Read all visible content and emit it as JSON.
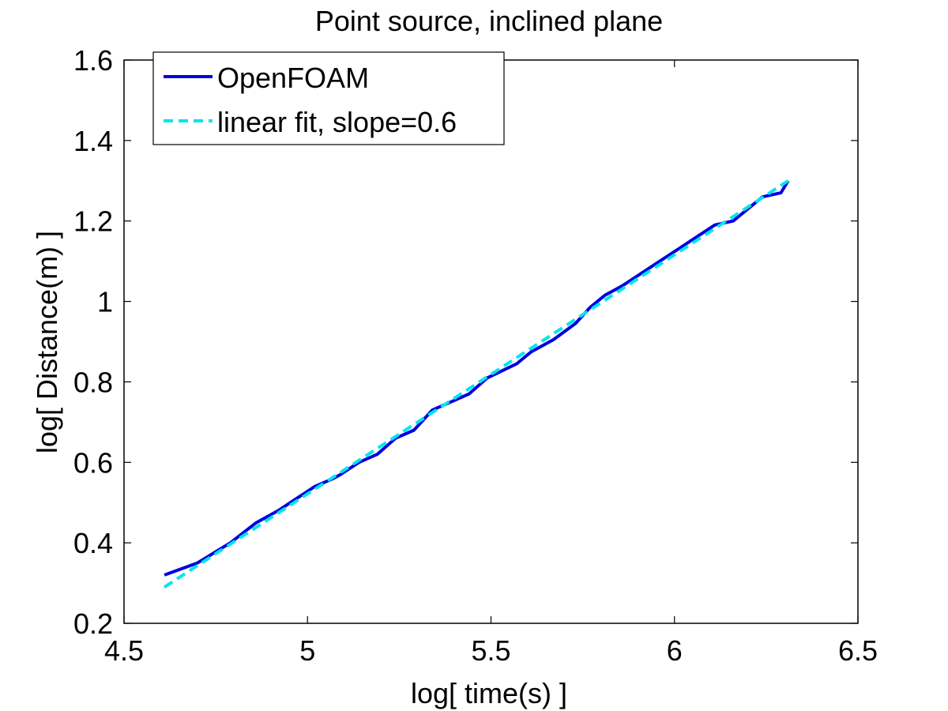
{
  "chart_data": {
    "type": "line",
    "title": "Point source, inclined plane",
    "xlabel": "log[ time(s) ]",
    "ylabel": "log[ Distance(m) ]",
    "xlim": [
      4.5,
      6.5
    ],
    "ylim": [
      0.2,
      1.6
    ],
    "xticks": [
      4.5,
      5,
      5.5,
      6,
      6.5
    ],
    "xtick_labels": [
      "4.5",
      "5",
      "5.5",
      "6",
      "6.5"
    ],
    "yticks": [
      0.2,
      0.4,
      0.6,
      0.8,
      1.0,
      1.2,
      1.4,
      1.6
    ],
    "ytick_labels": [
      "0.2",
      "0.4",
      "0.6",
      "0.8",
      "1",
      "1.2",
      "1.4",
      "1.6"
    ],
    "grid": false,
    "legend_position": "top-left",
    "series": [
      {
        "name": "OpenFOAM",
        "color": "#0000e0",
        "style": "solid",
        "x": [
          4.61,
          4.7,
          4.79,
          4.86,
          4.92,
          4.97,
          5.02,
          5.07,
          5.09,
          5.14,
          5.19,
          5.24,
          5.29,
          5.34,
          5.39,
          5.44,
          5.49,
          5.57,
          5.61,
          5.67,
          5.73,
          5.77,
          5.81,
          5.86,
          5.91,
          5.96,
          6.01,
          6.06,
          6.11,
          6.16,
          6.24,
          6.29,
          6.31
        ],
        "values": [
          0.32,
          0.35,
          0.4,
          0.45,
          0.48,
          0.51,
          0.54,
          0.56,
          0.57,
          0.6,
          0.62,
          0.66,
          0.68,
          0.73,
          0.75,
          0.77,
          0.81,
          0.845,
          0.875,
          0.905,
          0.945,
          0.985,
          1.015,
          1.04,
          1.07,
          1.1,
          1.13,
          1.16,
          1.19,
          1.2,
          1.26,
          1.27,
          1.3
        ]
      },
      {
        "name": "linear fit, slope=0.6",
        "color": "#00e5ee",
        "style": "dashed",
        "x": [
          4.61,
          6.31
        ],
        "values": [
          0.29,
          1.3
        ]
      }
    ]
  }
}
